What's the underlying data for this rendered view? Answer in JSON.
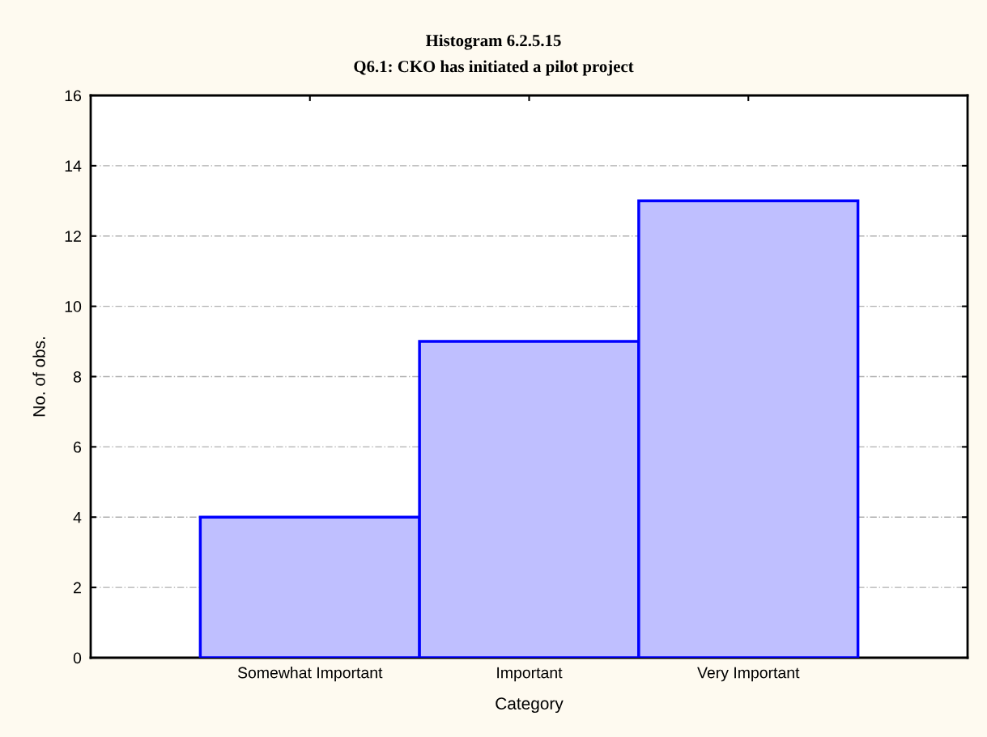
{
  "chart_data": {
    "type": "bar",
    "title": "Histogram 6.2.5.15",
    "subtitle": "Q6.1: CKO has initiated a pilot project",
    "xlabel": "Category",
    "ylabel": "No. of obs.",
    "categories": [
      "Somewhat Important",
      "Important",
      "Very Important"
    ],
    "values": [
      4,
      9,
      13
    ],
    "color": "#bfbfff",
    "ylim": [
      0,
      16
    ],
    "yticks": [
      0,
      2,
      4,
      6,
      8,
      10,
      12,
      14,
      16
    ],
    "grid": "y"
  }
}
